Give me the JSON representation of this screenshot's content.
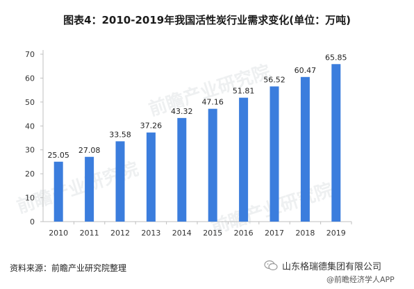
{
  "title": "图表4：2010-2019年我国活性炭行业需求变化(单位：万吨)",
  "source": "资料来源：前瞻产业研究院整理",
  "footer": {
    "brand": "山东格瑞德集团有限公司",
    "sub": "@前瞻经济学人APP"
  },
  "watermark": "前瞻产业研究院",
  "colors": {
    "bar": "#3b7ddd",
    "axis": "#bfbfbf"
  },
  "chart_data": {
    "type": "bar",
    "title": "图表4：2010-2019年我国活性炭行业需求变化(单位：万吨)",
    "categories": [
      "2010",
      "2011",
      "2012",
      "2013",
      "2014",
      "2015",
      "2016",
      "2017",
      "2018",
      "2019"
    ],
    "values": [
      25.05,
      27.08,
      33.58,
      37.26,
      43.32,
      47.16,
      51.81,
      56.52,
      60.47,
      65.85
    ],
    "data_labels": [
      "25.05",
      "27.08",
      "33.58",
      "37.26",
      "43.32",
      "47.16",
      "51.81",
      "56.52",
      "60.47",
      "65.85"
    ],
    "yticks": [
      "0",
      "10",
      "20",
      "30",
      "40",
      "50",
      "60",
      "70"
    ],
    "ylim": [
      0,
      70
    ],
    "xlabel": "",
    "ylabel": "",
    "grid": false,
    "legend": "none"
  }
}
